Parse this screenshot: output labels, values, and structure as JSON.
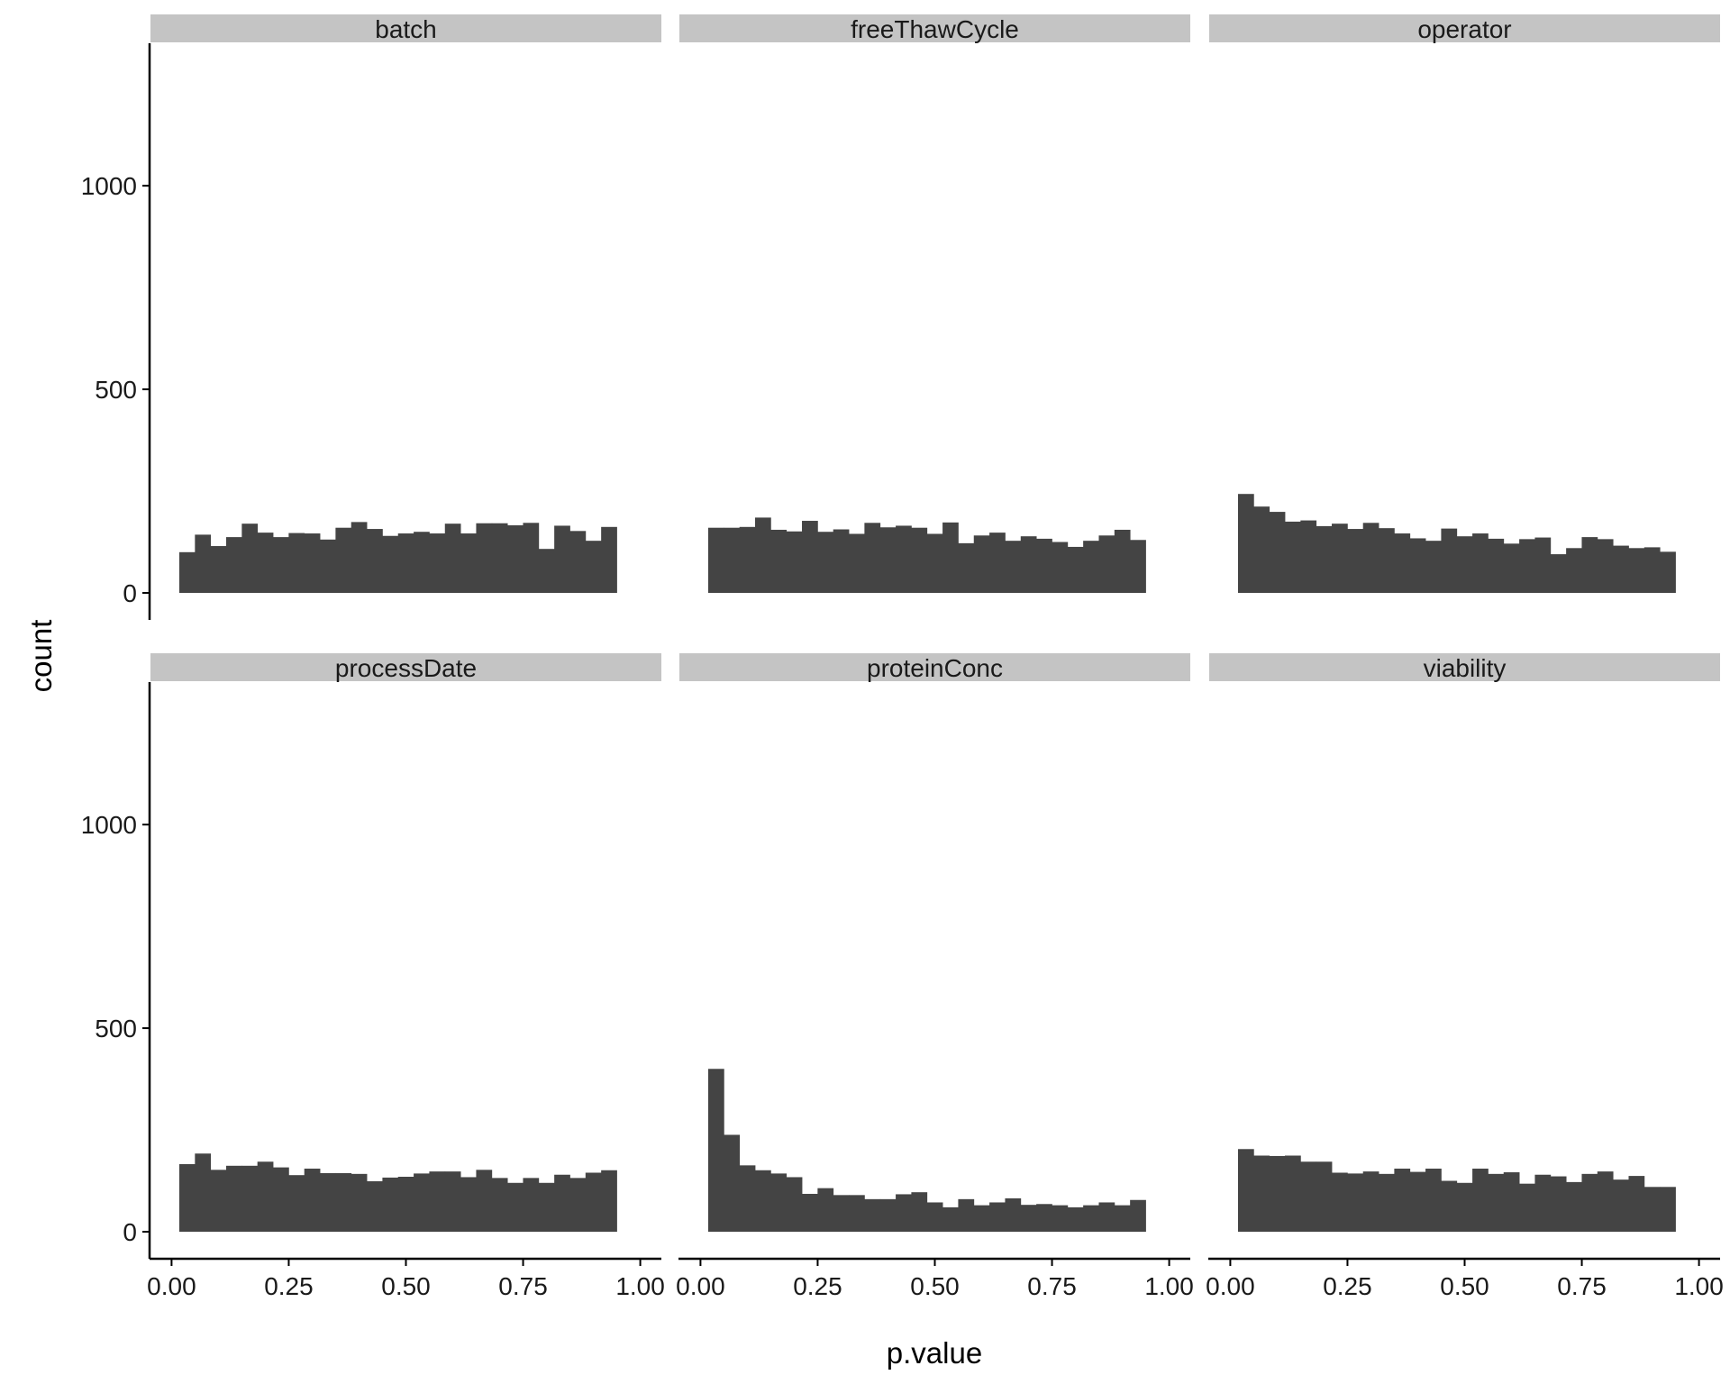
{
  "chart_data": {
    "type": "bar",
    "subtype": "faceted-histogram",
    "xlabel": "p.value",
    "ylabel": "count",
    "xlim": [
      0,
      1
    ],
    "ylim": [
      0,
      1350
    ],
    "x_ticks": [
      0,
      0.25,
      0.5,
      0.75,
      1.0
    ],
    "x_tick_labels": [
      "0.00",
      "0.25",
      "0.50",
      "0.75",
      "1.00"
    ],
    "y_ticks": [
      0,
      500,
      1000
    ],
    "y_tick_labels": [
      "0",
      "500",
      "1000"
    ],
    "bins": 30,
    "bin_range": [
      0,
      1
    ],
    "bar_color": "#444444",
    "strip_color": "#c4c4c4",
    "grid": false,
    "facets": [
      {
        "name": "batch",
        "values": [
          100,
          143,
          115,
          137,
          170,
          148,
          137,
          147,
          146,
          131,
          160,
          174,
          157,
          140,
          146,
          150,
          146,
          170,
          146,
          171,
          171,
          166,
          172,
          108,
          165,
          152,
          128,
          162,
          0,
          0
        ]
      },
      {
        "name": "freeThawCycle",
        "values": [
          160,
          160,
          162,
          185,
          155,
          151,
          177,
          150,
          156,
          145,
          172,
          161,
          165,
          160,
          145,
          173,
          122,
          141,
          148,
          128,
          139,
          133,
          125,
          113,
          128,
          141,
          155,
          130,
          0,
          0
        ]
      },
      {
        "name": "operator",
        "values": [
          243,
          212,
          199,
          175,
          178,
          164,
          170,
          157,
          172,
          159,
          146,
          134,
          128,
          158,
          139,
          146,
          133,
          121,
          132,
          136,
          95,
          110,
          137,
          132,
          116,
          110,
          112,
          101,
          0,
          0
        ]
      },
      {
        "name": "processDate",
        "values": [
          166,
          192,
          152,
          162,
          162,
          172,
          158,
          139,
          155,
          144,
          144,
          142,
          124,
          133,
          135,
          143,
          148,
          148,
          134,
          152,
          132,
          120,
          132,
          120,
          140,
          132,
          145,
          151,
          0,
          0
        ]
      },
      {
        "name": "proteinConc",
        "values": [
          400,
          238,
          163,
          151,
          143,
          134,
          93,
          107,
          90,
          90,
          80,
          80,
          92,
          97,
          72,
          60,
          80,
          65,
          72,
          82,
          66,
          68,
          65,
          60,
          65,
          72,
          65,
          78,
          0,
          0
        ]
      },
      {
        "name": "viability",
        "values": [
          203,
          187,
          186,
          187,
          172,
          172,
          145,
          143,
          148,
          142,
          155,
          147,
          155,
          125,
          120,
          155,
          142,
          146,
          118,
          140,
          136,
          122,
          142,
          148,
          128,
          137,
          110,
          110,
          0,
          0
        ]
      }
    ]
  }
}
